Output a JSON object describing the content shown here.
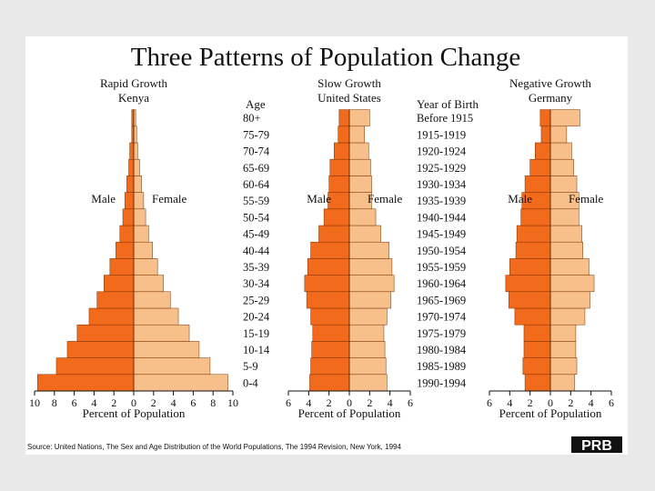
{
  "title": "Three Patterns of Population Change",
  "source": "Source: United Nations, The Sex and Age Distribution of the World Populations, The 1994 Revision, New York, 1994",
  "logo": "PRB",
  "age_column_label": "Age",
  "birth_column_label": "Year of Birth",
  "colors": {
    "male": "#f26a1b",
    "female": "#f7c08a",
    "stroke": "#7a3000"
  },
  "chart_data": [
    {
      "type": "bar",
      "title": "Rapid Growth",
      "subtitle": "Kenya",
      "male_label": "Male",
      "female_label": "Female",
      "xlabel": "Percent of Population",
      "xlim": [
        -10,
        10
      ],
      "xticks": [
        -10,
        -8,
        -6,
        -4,
        -2,
        0,
        2,
        4,
        6,
        8,
        10
      ],
      "xtick_labels": [
        "10",
        "8",
        "6",
        "4",
        "2",
        "0",
        "2",
        "4",
        "6",
        "8",
        "10"
      ],
      "categories": [
        "0-4",
        "5-9",
        "10-14",
        "15-19",
        "20-24",
        "25-29",
        "30-34",
        "35-39",
        "40-44",
        "45-49",
        "50-54",
        "55-59",
        "60-64",
        "65-69",
        "70-74",
        "75-79",
        "80+"
      ],
      "series": [
        {
          "name": "Male",
          "values": [
            9.7,
            7.8,
            6.7,
            5.7,
            4.5,
            3.7,
            3.0,
            2.4,
            1.8,
            1.4,
            1.1,
            0.9,
            0.7,
            0.5,
            0.4,
            0.2,
            0.2
          ]
        },
        {
          "name": "Female",
          "values": [
            9.5,
            7.7,
            6.6,
            5.6,
            4.5,
            3.7,
            3.0,
            2.4,
            1.9,
            1.5,
            1.2,
            1.0,
            0.8,
            0.6,
            0.4,
            0.3,
            0.2
          ]
        }
      ]
    },
    {
      "type": "bar",
      "title": "Slow Growth",
      "subtitle": "United States",
      "male_label": "Male",
      "female_label": "Female",
      "xlabel": "Percent of Population",
      "xlim": [
        -6,
        6
      ],
      "xticks": [
        -6,
        -4,
        -2,
        0,
        2,
        4,
        6
      ],
      "xtick_labels": [
        "6",
        "4",
        "2",
        "0",
        "2",
        "4",
        "6"
      ],
      "categories": [
        "0-4",
        "5-9",
        "10-14",
        "15-19",
        "20-24",
        "25-29",
        "30-34",
        "35-39",
        "40-44",
        "45-49",
        "50-54",
        "55-59",
        "60-64",
        "65-69",
        "70-74",
        "75-79",
        "80+"
      ],
      "series": [
        {
          "name": "Male",
          "values": [
            3.9,
            3.8,
            3.7,
            3.6,
            3.8,
            4.2,
            4.4,
            4.1,
            3.8,
            3.0,
            2.5,
            2.1,
            2.0,
            1.9,
            1.5,
            1.1,
            1.0
          ]
        },
        {
          "name": "Female",
          "values": [
            3.7,
            3.6,
            3.5,
            3.4,
            3.7,
            4.1,
            4.4,
            4.2,
            3.9,
            3.1,
            2.6,
            2.2,
            2.2,
            2.1,
            1.9,
            1.5,
            2.0
          ]
        }
      ]
    },
    {
      "type": "bar",
      "title": "Negative Growth",
      "subtitle": "Germany",
      "male_label": "Male",
      "female_label": "Female",
      "xlabel": "Percent of Population",
      "xlim": [
        -6,
        6
      ],
      "xticks": [
        -6,
        -4,
        -2,
        0,
        2,
        4,
        6
      ],
      "xtick_labels": [
        "6",
        "4",
        "2",
        "0",
        "2",
        "4",
        "6"
      ],
      "categories": [
        "0-4",
        "5-9",
        "10-14",
        "15-19",
        "20-24",
        "25-29",
        "30-34",
        "35-39",
        "40-44",
        "45-49",
        "50-54",
        "55-59",
        "60-64",
        "65-69",
        "70-74",
        "75-79",
        "80+"
      ],
      "series": [
        {
          "name": "Male",
          "values": [
            2.5,
            2.7,
            2.6,
            2.6,
            3.5,
            4.1,
            4.4,
            4.0,
            3.4,
            3.3,
            2.9,
            2.8,
            2.5,
            2.0,
            1.5,
            0.9,
            1.0
          ]
        },
        {
          "name": "Female",
          "values": [
            2.4,
            2.6,
            2.5,
            2.5,
            3.4,
            3.9,
            4.3,
            3.8,
            3.2,
            3.1,
            2.8,
            2.8,
            2.6,
            2.3,
            2.1,
            1.6,
            2.9
          ]
        }
      ]
    }
  ],
  "years_of_birth": [
    "1990-1994",
    "1985-1989",
    "1980-1984",
    "1975-1979",
    "1970-1974",
    "1965-1969",
    "1960-1964",
    "1955-1959",
    "1950-1954",
    "1945-1949",
    "1940-1944",
    "1935-1939",
    "1930-1934",
    "1925-1929",
    "1920-1924",
    "1915-1919",
    "Before 1915"
  ]
}
